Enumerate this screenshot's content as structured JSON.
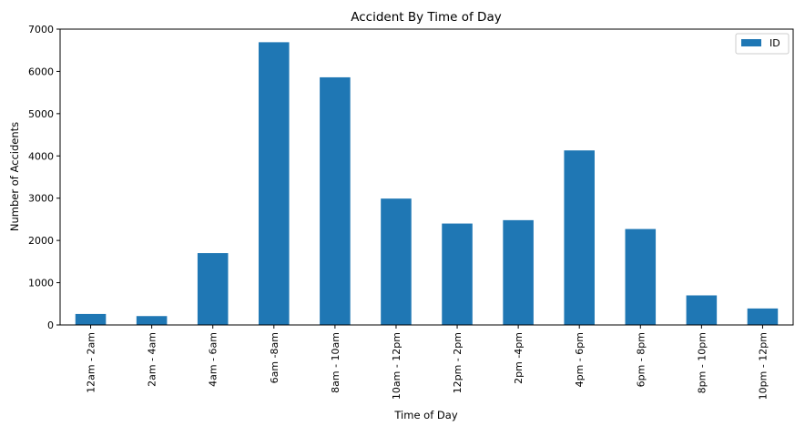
{
  "chart_data": {
    "type": "bar",
    "title": "Accident By Time of Day",
    "xlabel": "Time of Day",
    "ylabel": "Number of Accidents",
    "categories": [
      "12am - 2am",
      "2am - 4am",
      "4am - 6am",
      "6am -8am",
      "8am - 10am",
      "10am - 12pm",
      "12pm - 2pm",
      "2pm -4pm",
      "4pm - 6pm",
      "6pm - 8pm",
      "8pm - 10pm",
      "10pm - 12pm"
    ],
    "series": [
      {
        "name": "ID",
        "color": "#1f77b4",
        "values": [
          260,
          210,
          1700,
          6690,
          5860,
          2990,
          2400,
          2480,
          4130,
          2270,
          700,
          390
        ]
      }
    ],
    "ylim": [
      0,
      7000
    ],
    "yticks": [
      0,
      1000,
      2000,
      3000,
      4000,
      5000,
      6000,
      7000
    ],
    "grid": false,
    "legend": {
      "position": "top-right",
      "entries": [
        "ID"
      ]
    }
  }
}
